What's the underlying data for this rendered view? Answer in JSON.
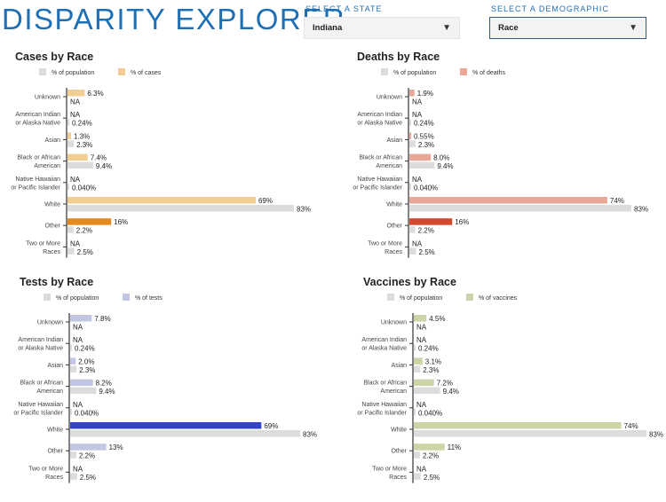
{
  "header": {
    "title": "DISPARITY EXPLORER",
    "state_label": "SELECT A STATE",
    "state_value": "Indiana",
    "demographic_label": "SELECT A DEMOGRAPHIC",
    "demographic_value": "Race"
  },
  "colors": {
    "brand": "#1f6fb5",
    "population_bar": "#dcdcdc"
  },
  "chart_data": [
    {
      "type": "bar",
      "orientation": "horizontal",
      "title": "Cases by Race",
      "categories": [
        [
          "Unknown"
        ],
        [
          "American Indian",
          "or Alaska Native"
        ],
        [
          "Asian"
        ],
        [
          "Black or African",
          "American"
        ],
        [
          "Native Hawaiian",
          "or Pacific Islander"
        ],
        [
          "White"
        ],
        [
          "Other"
        ],
        [
          "Two or More",
          "Races"
        ]
      ],
      "series": [
        {
          "name": "% of cases",
          "labels": [
            "6.3%",
            "NA",
            "1.3%",
            "7.4%",
            "NA",
            "69%",
            "16%",
            "NA"
          ],
          "values": [
            6.3,
            null,
            1.3,
            7.4,
            null,
            69,
            16,
            null
          ],
          "color": "#f1cd92"
        },
        {
          "name": "% of population",
          "labels": [
            "NA",
            "0.24%",
            "2.3%",
            "9.4%",
            "0.040%",
            "83%",
            "2.2%",
            "2.5%"
          ],
          "values": [
            null,
            0.24,
            2.3,
            9.4,
            0.04,
            83,
            2.2,
            2.5
          ],
          "color": "#dcdcdc"
        }
      ],
      "highlight": {
        "index": 6,
        "color": "#e58a1f"
      },
      "xlim": [
        0,
        83
      ]
    },
    {
      "type": "bar",
      "orientation": "horizontal",
      "title": "Deaths by Race",
      "categories": [
        [
          "Unknown"
        ],
        [
          "American Indian",
          "or Alaska Native"
        ],
        [
          "Asian"
        ],
        [
          "Black or African",
          "American"
        ],
        [
          "Native Hawaiian",
          "or Pacific Islander"
        ],
        [
          "White"
        ],
        [
          "Other"
        ],
        [
          "Two or More",
          "Races"
        ]
      ],
      "series": [
        {
          "name": "% of deaths",
          "labels": [
            "1.9%",
            "NA",
            "0.55%",
            "8.0%",
            "NA",
            "74%",
            "16%",
            "NA"
          ],
          "values": [
            1.9,
            null,
            0.55,
            8.0,
            null,
            74,
            16,
            null
          ],
          "color": "#eaa796"
        },
        {
          "name": "% of population",
          "labels": [
            "NA",
            "0.24%",
            "2.3%",
            "9.4%",
            "0.040%",
            "83%",
            "2.2%",
            "2.5%"
          ],
          "values": [
            null,
            0.24,
            2.3,
            9.4,
            0.04,
            83,
            2.2,
            2.5
          ],
          "color": "#dcdcdc"
        }
      ],
      "highlight": {
        "index": 6,
        "color": "#d5482d"
      },
      "xlim": [
        0,
        83
      ]
    },
    {
      "type": "bar",
      "orientation": "horizontal",
      "title": "Tests by Race",
      "categories": [
        [
          "Unknown"
        ],
        [
          "American Indian",
          "or Alaska Native"
        ],
        [
          "Asian"
        ],
        [
          "Black or African",
          "American"
        ],
        [
          "Native Hawaiian",
          "or Pacific Islander"
        ],
        [
          "White"
        ],
        [
          "Other"
        ],
        [
          "Two or More",
          "Races"
        ]
      ],
      "series": [
        {
          "name": "% of tests",
          "labels": [
            "7.8%",
            "NA",
            "2.0%",
            "8.2%",
            "NA",
            "69%",
            "13%",
            "NA"
          ],
          "values": [
            7.8,
            null,
            2.0,
            8.2,
            null,
            69,
            13,
            null
          ],
          "color": "#c3c6e2"
        },
        {
          "name": "% of population",
          "labels": [
            "NA",
            "0.24%",
            "2.3%",
            "9.4%",
            "0.040%",
            "83%",
            "2.2%",
            "2.5%"
          ],
          "values": [
            null,
            0.24,
            2.3,
            9.4,
            0.04,
            83,
            2.2,
            2.5
          ],
          "color": "#dcdcdc"
        }
      ],
      "highlight": {
        "index": 5,
        "color": "#3543c8"
      },
      "xlim": [
        0,
        83
      ]
    },
    {
      "type": "bar",
      "orientation": "horizontal",
      "title": "Vaccines by Race",
      "categories": [
        [
          "Unknown"
        ],
        [
          "American Indian",
          "or Alaska Native"
        ],
        [
          "Asian"
        ],
        [
          "Black or African",
          "American"
        ],
        [
          "Native Hawaiian",
          "or Pacific Islander"
        ],
        [
          "White"
        ],
        [
          "Other"
        ],
        [
          "Two or More",
          "Races"
        ]
      ],
      "series": [
        {
          "name": "% of vaccines",
          "labels": [
            "4.5%",
            "NA",
            "3.1%",
            "7.2%",
            "NA",
            "74%",
            "11%",
            "NA"
          ],
          "values": [
            4.5,
            null,
            3.1,
            7.2,
            null,
            74,
            11,
            null
          ],
          "color": "#cfd3a8"
        },
        {
          "name": "% of population",
          "labels": [
            "NA",
            "0.24%",
            "2.3%",
            "9.4%",
            "0.040%",
            "83%",
            "2.2%",
            "2.5%"
          ],
          "values": [
            null,
            0.24,
            2.3,
            9.4,
            0.04,
            83,
            2.2,
            2.5
          ],
          "color": "#dcdcdc"
        }
      ],
      "highlight": null,
      "xlim": [
        0,
        83
      ]
    }
  ]
}
